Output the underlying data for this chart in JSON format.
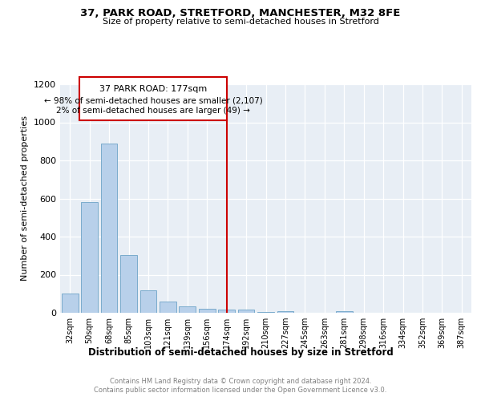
{
  "title": "37, PARK ROAD, STRETFORD, MANCHESTER, M32 8FE",
  "subtitle": "Size of property relative to semi-detached houses in Stretford",
  "xlabel": "Distribution of semi-detached houses by size in Stretford",
  "ylabel": "Number of semi-detached properties",
  "bin_labels": [
    "32sqm",
    "50sqm",
    "68sqm",
    "85sqm",
    "103sqm",
    "121sqm",
    "139sqm",
    "156sqm",
    "174sqm",
    "192sqm",
    "210sqm",
    "227sqm",
    "245sqm",
    "263sqm",
    "281sqm",
    "298sqm",
    "316sqm",
    "334sqm",
    "352sqm",
    "369sqm",
    "387sqm"
  ],
  "bar_values": [
    100,
    580,
    890,
    305,
    120,
    60,
    35,
    20,
    15,
    15,
    5,
    10,
    0,
    0,
    10,
    0,
    0,
    0,
    0,
    0,
    0
  ],
  "bar_color": "#b8d0ea",
  "bar_edge_color": "#7aabcc",
  "vline_index": 8,
  "property_line_label": "37 PARK ROAD: 177sqm",
  "annotation_line1": "← 98% of semi-detached houses are smaller (2,107)",
  "annotation_line2": "2% of semi-detached houses are larger (49) →",
  "vline_color": "#cc0000",
  "annotation_box_color": "#cc0000",
  "ylim": [
    0,
    1200
  ],
  "yticks": [
    0,
    200,
    400,
    600,
    800,
    1000,
    1200
  ],
  "background_color": "#e8eef5",
  "footer_line1": "Contains HM Land Registry data © Crown copyright and database right 2024.",
  "footer_line2": "Contains public sector information licensed under the Open Government Licence v3.0."
}
